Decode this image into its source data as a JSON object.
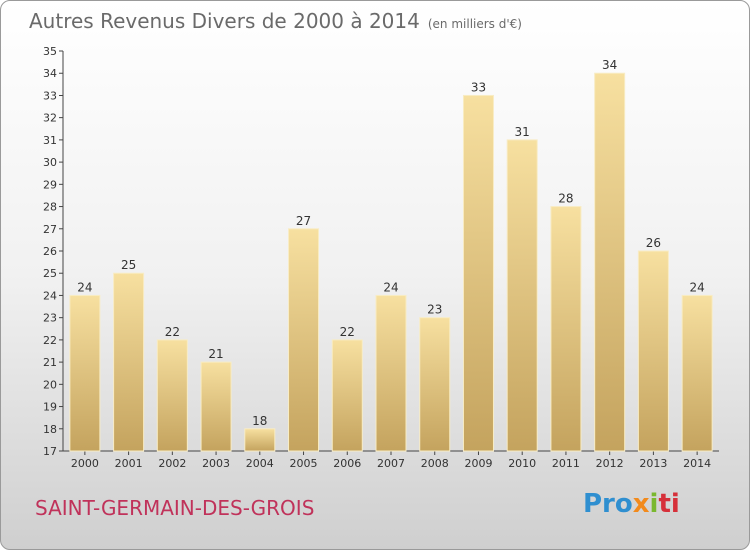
{
  "title": "Autres Revenus Divers de 2000 à 2014",
  "unit": "(en milliers d'€)",
  "place": "SAINT-GERMAIN-DES-GROIS",
  "logo": {
    "p1": "Pro",
    "p2": "x",
    "p3": "i",
    "p4": "ti"
  },
  "chart_data": {
    "type": "bar",
    "title": "Autres Revenus Divers de 2000 à 2014",
    "xlabel": "",
    "ylabel": "",
    "categories": [
      "2000",
      "2001",
      "2002",
      "2003",
      "2004",
      "2005",
      "2006",
      "2007",
      "2008",
      "2009",
      "2010",
      "2011",
      "2012",
      "2013",
      "2014"
    ],
    "values": [
      24,
      25,
      22,
      21,
      18,
      27,
      22,
      24,
      23,
      33,
      31,
      28,
      34,
      26,
      24
    ],
    "ylim": [
      17,
      35
    ],
    "yticks": [
      17,
      18,
      19,
      20,
      21,
      22,
      23,
      24,
      25,
      26,
      27,
      28,
      29,
      30,
      31,
      32,
      33,
      34,
      35
    ],
    "grid": false,
    "bar_color": "#e8cf8a",
    "bar_color_dark": "#c8a860"
  }
}
